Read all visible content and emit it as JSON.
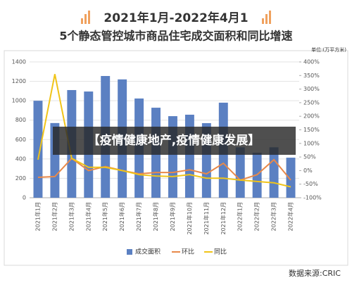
{
  "chart_data": {
    "type": "bar",
    "title": "2021年1月-2022年4月1",
    "subtitle": "5个静态管控城市商品住宅成交面积和同比增速",
    "unit": "单位:(万平方米)",
    "source": "数据来源:CRIC",
    "overlay_text": "【疫情健康地产,疫情健康发展】",
    "categories": [
      "2021年1月",
      "2021年2月",
      "2021年3月",
      "2021年4月",
      "2021年5月",
      "2021年6月",
      "2021年7月",
      "2021年8月",
      "2021年9月",
      "2021年10月",
      "2021年11月",
      "2021年12月",
      "2022年1月",
      "2022年2月",
      "2022年3月",
      "2022年4月"
    ],
    "series": [
      {
        "name": "成交面积",
        "type": "bar",
        "color": "#5b80c2",
        "axis": "y",
        "values": [
          1000,
          770,
          1110,
          1095,
          1255,
          1220,
          1023,
          928,
          841,
          856,
          769,
          980,
          520,
          464,
          520,
          413
        ]
      },
      {
        "name": "环比",
        "type": "line",
        "color": "#e8894a",
        "axis": "y2",
        "values": [
          -25,
          -22,
          45,
          0,
          15,
          0,
          -12,
          -7,
          -7,
          3,
          -12,
          27,
          -35,
          -15,
          40,
          -35
        ]
      },
      {
        "name": "同比",
        "type": "line",
        "color": "#f0c419",
        "axis": "y2",
        "values": [
          40,
          355,
          45,
          12,
          12,
          0,
          -15,
          -20,
          -22,
          -15,
          -28,
          -28,
          -35,
          -40,
          -45,
          -60
        ]
      }
    ],
    "ylim": [
      0,
      1400
    ],
    "yticks": [
      0,
      200,
      400,
      600,
      800,
      1000,
      1200,
      1400
    ],
    "y2lim": [
      -100,
      400
    ],
    "y2ticks": [
      {
        "value": -100,
        "label": "-100%"
      },
      {
        "value": -50,
        "label": "-50%"
      },
      {
        "value": 0,
        "label": "0%"
      },
      {
        "value": 50,
        "label": "50%"
      },
      {
        "value": 100,
        "label": "100%"
      },
      {
        "value": 150,
        "label": "150%"
      },
      {
        "value": 200,
        "label": "200%"
      },
      {
        "value": 250,
        "label": "250%"
      },
      {
        "value": 300,
        "label": "300%"
      },
      {
        "value": 350,
        "label": "350%"
      },
      {
        "value": 400,
        "label": "400%"
      }
    ],
    "grid": true
  }
}
